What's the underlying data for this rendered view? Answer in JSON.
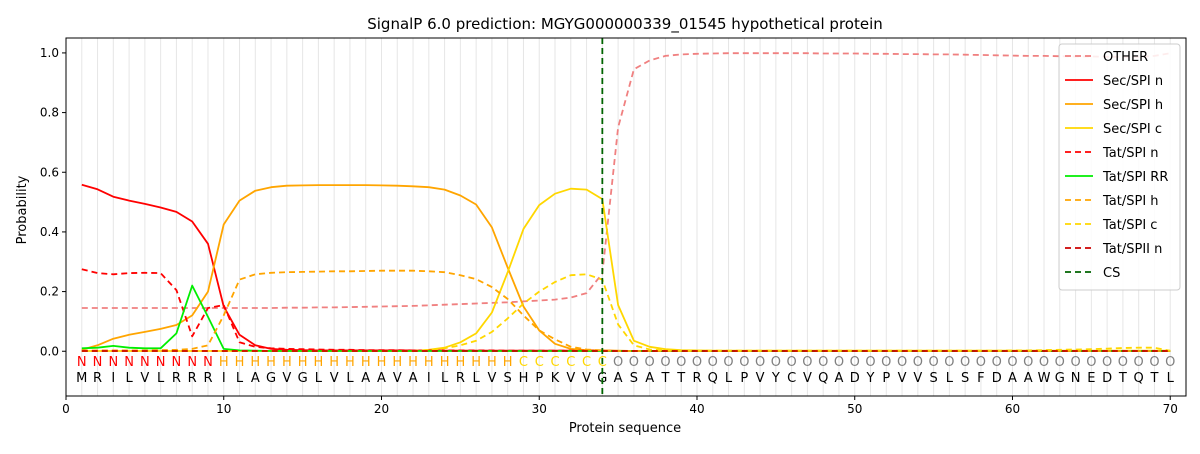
{
  "chart_data": {
    "type": "line",
    "title": "SignalP 6.0 prediction: MGYG000000339_01545 hypothetical protein",
    "xlabel": "Protein sequence",
    "ylabel": "Probability",
    "xlim": [
      0,
      71
    ],
    "ylim": [
      -0.15,
      1.05
    ],
    "x_ticks": [
      0,
      10,
      20,
      30,
      40,
      50,
      60,
      70
    ],
    "y_ticks": [
      0.0,
      0.2,
      0.4,
      0.6,
      0.8,
      1.0
    ],
    "grid": "vertical lines at each residue",
    "legend_position": "top-right",
    "sequence": [
      "M",
      "R",
      "I",
      "L",
      "V",
      "L",
      "R",
      "R",
      "R",
      "I",
      "L",
      "A",
      "G",
      "V",
      "G",
      "L",
      "V",
      "L",
      "A",
      "A",
      "V",
      "A",
      "I",
      "L",
      "R",
      "L",
      "V",
      "S",
      "H",
      "P",
      "K",
      "V",
      "V",
      "G",
      "A",
      "S",
      "A",
      "T",
      "T",
      "R",
      "Q",
      "L",
      "P",
      "V",
      "Y",
      "C",
      "V",
      "Q",
      "A",
      "D",
      "Y",
      "P",
      "V",
      "V",
      "S",
      "L",
      "S",
      "F",
      "D",
      "A",
      "A",
      "W",
      "G",
      "N",
      "E",
      "D",
      "T",
      "Q",
      "T",
      "L"
    ],
    "region_labels": [
      "N",
      "N",
      "N",
      "N",
      "N",
      "N",
      "N",
      "N",
      "N",
      "H",
      "H",
      "H",
      "H",
      "H",
      "H",
      "H",
      "H",
      "H",
      "H",
      "H",
      "H",
      "H",
      "H",
      "H",
      "H",
      "H",
      "H",
      "H",
      "C",
      "C",
      "C",
      "C",
      "C",
      "C",
      "O",
      "O",
      "O",
      "O",
      "O",
      "O",
      "O",
      "O",
      "O",
      "O",
      "O",
      "O",
      "O",
      "O",
      "O",
      "O",
      "O",
      "O",
      "O",
      "O",
      "O",
      "O",
      "O",
      "O",
      "O",
      "O",
      "O",
      "O",
      "O",
      "O",
      "O",
      "O",
      "O",
      "O",
      "O",
      "O"
    ],
    "region_colors": {
      "N": "#ff0000",
      "H": "#ffa500",
      "C": "#ffd700",
      "O": "#808080"
    },
    "cleavage_site": 34,
    "series": [
      {
        "name": "OTHER",
        "color": "#f08080",
        "dash": "dashed",
        "values": [
          0.145,
          0.145,
          0.145,
          0.145,
          0.145,
          0.145,
          0.145,
          0.145,
          0.145,
          0.145,
          0.145,
          0.145,
          0.145,
          0.146,
          0.146,
          0.147,
          0.147,
          0.148,
          0.149,
          0.15,
          0.151,
          0.152,
          0.154,
          0.156,
          0.158,
          0.16,
          0.162,
          0.164,
          0.167,
          0.17,
          0.173,
          0.18,
          0.195,
          0.26,
          0.75,
          0.945,
          0.975,
          0.99,
          0.995,
          0.997,
          0.998,
          0.999,
          0.999,
          0.999,
          0.999,
          0.999,
          0.999,
          0.998,
          0.998,
          0.998,
          0.997,
          0.997,
          0.996,
          0.996,
          0.995,
          0.995,
          0.994,
          0.993,
          0.992,
          0.991,
          0.99,
          0.99,
          0.989,
          0.988,
          0.988,
          0.987,
          0.987,
          0.987,
          0.99,
          0.999
        ]
      },
      {
        "name": "Sec/SPI n",
        "color": "#ff0000",
        "dash": "solid",
        "values": [
          0.558,
          0.543,
          0.518,
          0.505,
          0.494,
          0.482,
          0.467,
          0.435,
          0.36,
          0.15,
          0.055,
          0.02,
          0.008,
          0.005,
          0.004,
          0.003,
          0.003,
          0.003,
          0.003,
          0.003,
          0.003,
          0.003,
          0.002,
          0.002,
          0.002,
          0.002,
          0.002,
          0.002,
          0.002,
          0.002,
          0.002,
          0.002,
          0.002,
          0.002,
          0.001,
          0.001,
          0.001,
          0.001,
          0.001,
          0.001,
          0.001,
          0.001,
          0.001,
          0.001,
          0.001,
          0.001,
          0.001,
          0.001,
          0.001,
          0.001,
          0.001,
          0.001,
          0.001,
          0.001,
          0.001,
          0.001,
          0.001,
          0.001,
          0.001,
          0.001,
          0.001,
          0.001,
          0.001,
          0.001,
          0.001,
          0.001,
          0.001,
          0.001,
          0.001,
          0.001
        ]
      },
      {
        "name": "Sec/SPI h",
        "color": "#ffa500",
        "dash": "solid",
        "values": [
          0.005,
          0.02,
          0.042,
          0.055,
          0.065,
          0.075,
          0.088,
          0.12,
          0.2,
          0.425,
          0.505,
          0.538,
          0.55,
          0.555,
          0.556,
          0.557,
          0.557,
          0.557,
          0.557,
          0.556,
          0.555,
          0.553,
          0.55,
          0.542,
          0.522,
          0.492,
          0.415,
          0.28,
          0.15,
          0.07,
          0.025,
          0.008,
          0.004,
          0.003,
          0.002,
          0.001,
          0.001,
          0.001,
          0.001,
          0.001,
          0.001,
          0.001,
          0.001,
          0.001,
          0.001,
          0.001,
          0.001,
          0.001,
          0.001,
          0.001,
          0.001,
          0.001,
          0.001,
          0.001,
          0.001,
          0.001,
          0.001,
          0.001,
          0.001,
          0.001,
          0.001,
          0.001,
          0.001,
          0.001,
          0.001,
          0.001,
          0.001,
          0.001,
          0.001,
          0.001
        ]
      },
      {
        "name": "Sec/SPI c",
        "color": "#ffd700",
        "dash": "solid",
        "values": [
          0.001,
          0.001,
          0.001,
          0.001,
          0.001,
          0.001,
          0.001,
          0.001,
          0.001,
          0.001,
          0.001,
          0.001,
          0.001,
          0.001,
          0.001,
          0.001,
          0.001,
          0.001,
          0.001,
          0.001,
          0.001,
          0.001,
          0.005,
          0.012,
          0.03,
          0.06,
          0.13,
          0.265,
          0.41,
          0.49,
          0.528,
          0.545,
          0.542,
          0.51,
          0.155,
          0.035,
          0.015,
          0.007,
          0.004,
          0.003,
          0.002,
          0.002,
          0.002,
          0.002,
          0.002,
          0.002,
          0.002,
          0.002,
          0.002,
          0.002,
          0.002,
          0.002,
          0.002,
          0.002,
          0.002,
          0.002,
          0.002,
          0.002,
          0.002,
          0.002,
          0.002,
          0.002,
          0.002,
          0.002,
          0.002,
          0.002,
          0.002,
          0.002,
          0.002,
          0.002
        ]
      },
      {
        "name": "Tat/SPI n",
        "color": "#ff0000",
        "dash": "dashed",
        "values": [
          0.275,
          0.262,
          0.258,
          0.262,
          0.263,
          0.262,
          0.205,
          0.05,
          0.145,
          0.155,
          0.03,
          0.015,
          0.01,
          0.008,
          0.007,
          0.006,
          0.005,
          0.005,
          0.004,
          0.004,
          0.004,
          0.003,
          0.003,
          0.003,
          0.003,
          0.003,
          0.003,
          0.002,
          0.002,
          0.002,
          0.002,
          0.002,
          0.002,
          0.002,
          0.001,
          0.001,
          0.001,
          0.001,
          0.001,
          0.001,
          0.001,
          0.001,
          0.001,
          0.001,
          0.001,
          0.001,
          0.001,
          0.001,
          0.001,
          0.001,
          0.001,
          0.001,
          0.001,
          0.001,
          0.001,
          0.001,
          0.001,
          0.001,
          0.001,
          0.001,
          0.001,
          0.001,
          0.001,
          0.001,
          0.001,
          0.001,
          0.001,
          0.001,
          0.001,
          0.001
        ]
      },
      {
        "name": "Tat/SPI RR",
        "color": "#00ee00",
        "dash": "solid",
        "values": [
          0.01,
          0.012,
          0.018,
          0.012,
          0.01,
          0.01,
          0.06,
          0.22,
          0.115,
          0.008,
          0.003,
          0.002,
          0.001,
          0.001,
          0.001,
          0.001,
          0.001,
          0.001,
          0.001,
          0.001,
          0.001,
          0.001,
          0.001,
          0.001,
          0.001,
          0.001,
          0.001,
          0.001,
          0.001,
          0.001,
          0.001,
          0.001,
          0.001,
          0.001,
          0.001,
          0.001,
          0.001,
          0.001,
          0.001,
          0.001,
          0.001,
          0.001,
          0.001,
          0.001,
          0.001,
          0.001,
          0.001,
          0.001,
          0.001,
          0.001,
          0.001,
          0.001,
          0.001,
          0.001,
          0.001,
          0.001,
          0.001,
          0.001,
          0.001,
          0.001,
          0.001,
          0.001,
          0.001,
          0.001,
          0.001,
          0.001,
          0.001,
          0.001,
          0.001,
          0.001
        ]
      },
      {
        "name": "Tat/SPI h",
        "color": "#ffa500",
        "dash": "dashed",
        "values": [
          0.002,
          0.003,
          0.003,
          0.003,
          0.003,
          0.004,
          0.005,
          0.008,
          0.02,
          0.12,
          0.24,
          0.258,
          0.263,
          0.265,
          0.266,
          0.267,
          0.268,
          0.268,
          0.269,
          0.27,
          0.27,
          0.27,
          0.268,
          0.265,
          0.255,
          0.242,
          0.215,
          0.175,
          0.12,
          0.07,
          0.04,
          0.015,
          0.006,
          0.003,
          0.001,
          0.001,
          0.001,
          0.001,
          0.001,
          0.001,
          0.001,
          0.001,
          0.001,
          0.001,
          0.001,
          0.001,
          0.001,
          0.001,
          0.001,
          0.001,
          0.001,
          0.001,
          0.001,
          0.001,
          0.001,
          0.001,
          0.001,
          0.001,
          0.001,
          0.001,
          0.001,
          0.001,
          0.001,
          0.001,
          0.001,
          0.001,
          0.001,
          0.001,
          0.001,
          0.001
        ]
      },
      {
        "name": "Tat/SPI c",
        "color": "#ffd700",
        "dash": "dashed",
        "values": [
          0.001,
          0.001,
          0.001,
          0.001,
          0.001,
          0.001,
          0.001,
          0.001,
          0.001,
          0.001,
          0.001,
          0.001,
          0.001,
          0.001,
          0.001,
          0.001,
          0.001,
          0.001,
          0.001,
          0.001,
          0.001,
          0.001,
          0.004,
          0.01,
          0.02,
          0.035,
          0.065,
          0.11,
          0.16,
          0.2,
          0.232,
          0.255,
          0.258,
          0.24,
          0.09,
          0.02,
          0.006,
          0.003,
          0.002,
          0.002,
          0.002,
          0.002,
          0.002,
          0.002,
          0.002,
          0.002,
          0.002,
          0.002,
          0.002,
          0.002,
          0.002,
          0.002,
          0.002,
          0.002,
          0.002,
          0.002,
          0.002,
          0.002,
          0.002,
          0.003,
          0.003,
          0.004,
          0.005,
          0.006,
          0.007,
          0.009,
          0.011,
          0.012,
          0.012,
          0.002
        ]
      },
      {
        "name": "Tat/SPII n",
        "color": "#cc0000",
        "dash": "dashed",
        "values": [
          0.001,
          0.001,
          0.001,
          0.001,
          0.001,
          0.001,
          0.001,
          0.001,
          0.001,
          0.001,
          0.001,
          0.001,
          0.001,
          0.001,
          0.001,
          0.001,
          0.001,
          0.001,
          0.001,
          0.001,
          0.001,
          0.001,
          0.001,
          0.001,
          0.001,
          0.001,
          0.001,
          0.001,
          0.001,
          0.001,
          0.001,
          0.001,
          0.001,
          0.001,
          0.001,
          0.001,
          0.001,
          0.001,
          0.001,
          0.001,
          0.001,
          0.001,
          0.001,
          0.001,
          0.001,
          0.001,
          0.001,
          0.001,
          0.001,
          0.001,
          0.001,
          0.001,
          0.001,
          0.001,
          0.001,
          0.001,
          0.001,
          0.001,
          0.001,
          0.001,
          0.001,
          0.001,
          0.001,
          0.001,
          0.001,
          0.001,
          0.001,
          0.001,
          0.001,
          0.001
        ]
      }
    ],
    "legend_entries": [
      {
        "name": "OTHER",
        "color": "#f08080",
        "dash": "dashed"
      },
      {
        "name": "Sec/SPI n",
        "color": "#ff0000",
        "dash": "solid"
      },
      {
        "name": "Sec/SPI h",
        "color": "#ffa500",
        "dash": "solid"
      },
      {
        "name": "Sec/SPI c",
        "color": "#ffd700",
        "dash": "solid"
      },
      {
        "name": "Tat/SPI n",
        "color": "#ff0000",
        "dash": "dashed"
      },
      {
        "name": "Tat/SPI RR",
        "color": "#00ee00",
        "dash": "solid"
      },
      {
        "name": "Tat/SPI h",
        "color": "#ffa500",
        "dash": "dashed"
      },
      {
        "name": "Tat/SPI c",
        "color": "#ffd700",
        "dash": "dashed"
      },
      {
        "name": "Tat/SPII n",
        "color": "#cc0000",
        "dash": "dashed"
      },
      {
        "name": "CS",
        "color": "#006400",
        "dash": "dashed"
      }
    ]
  }
}
